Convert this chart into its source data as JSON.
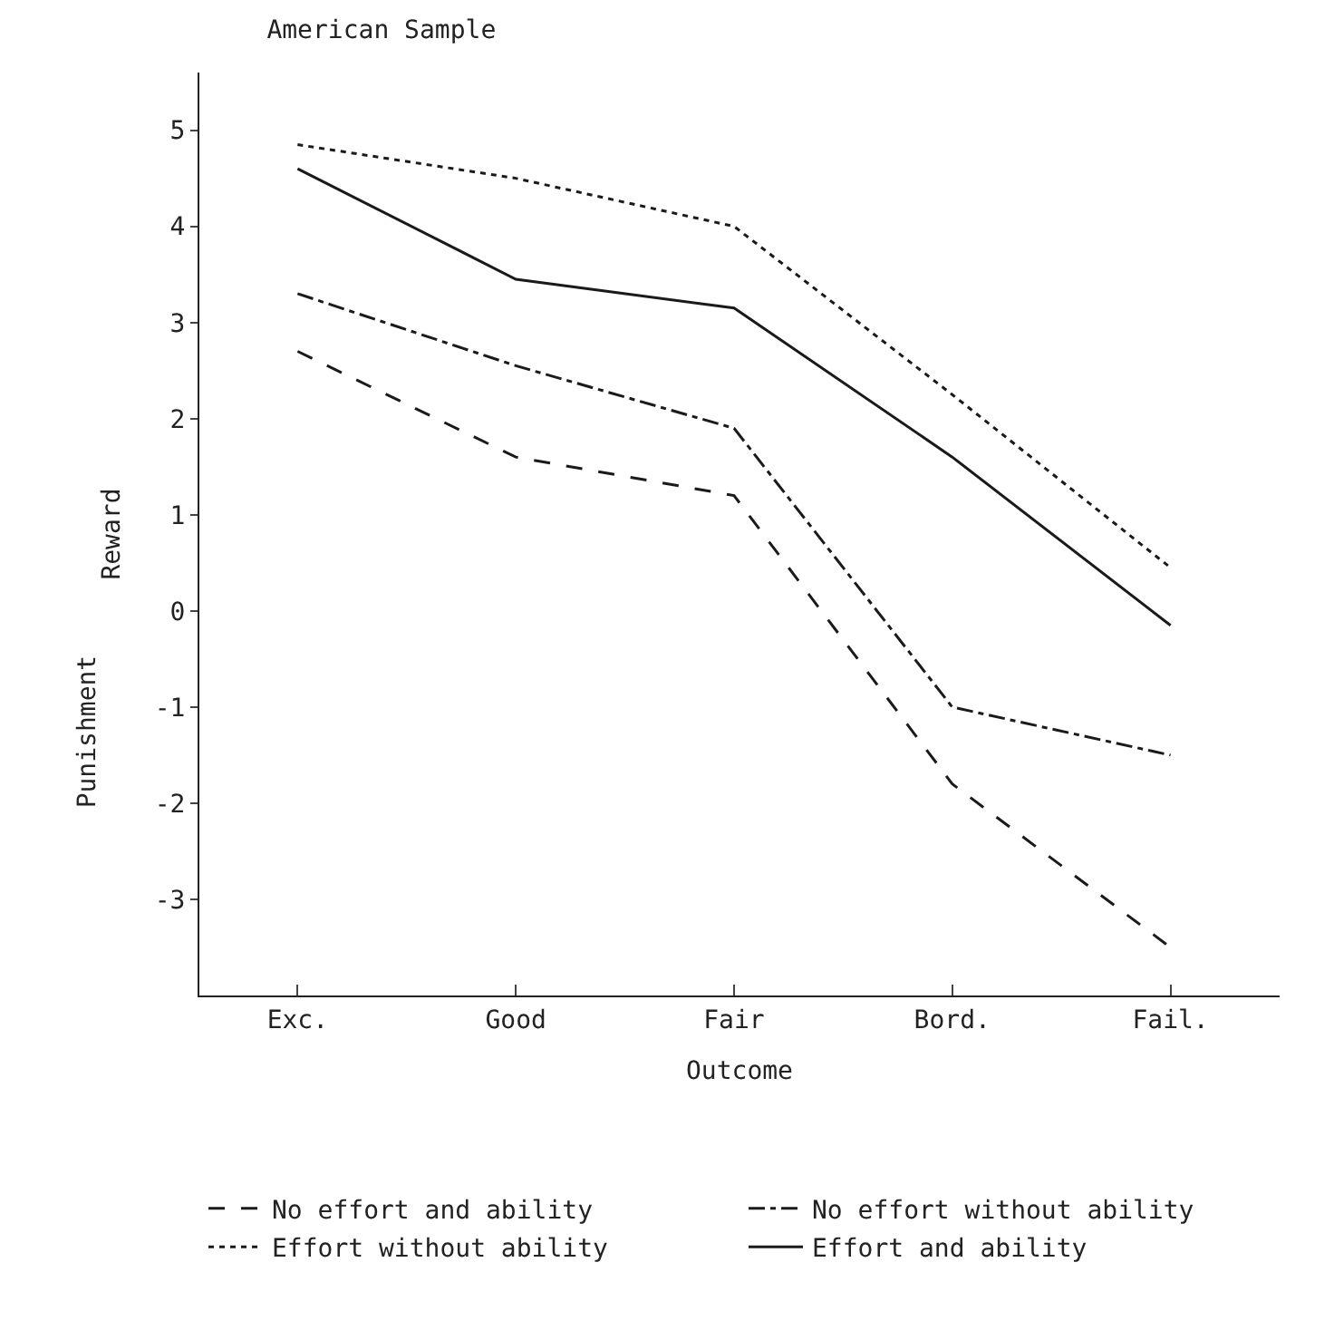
{
  "chart_data": {
    "type": "line",
    "title": "American Sample",
    "xlabel": "Outcome",
    "ylabel": "Reward",
    "annotations": [
      "Punishment"
    ],
    "categories": [
      "Exc.",
      "Good",
      "Fair",
      "Bord.",
      "Fail."
    ],
    "series": [
      {
        "name": "No effort and ability",
        "color": "#1a1a1a",
        "line_style": "dashed",
        "values": [
          2.7,
          1.6,
          1.2,
          -1.8,
          -3.5
        ]
      },
      {
        "name": "No effort without ability",
        "color": "#1a1a1a",
        "line_style": "dashdot",
        "values": [
          3.3,
          2.55,
          1.9,
          -1.0,
          -1.5
        ]
      },
      {
        "name": "Effort without ability",
        "color": "#1a1a1a",
        "line_style": "dotted",
        "values": [
          4.85,
          4.5,
          4.0,
          2.25,
          0.45
        ]
      },
      {
        "name": "Effort and ability",
        "color": "#1a1a1a",
        "line_style": "solid",
        "values": [
          4.6,
          3.45,
          3.15,
          1.6,
          -0.15
        ]
      }
    ],
    "ylim": [
      -4,
      5.6
    ],
    "yticks": [
      -3,
      -2,
      -1,
      0,
      1,
      2,
      3,
      4,
      5
    ],
    "legend": "bottom",
    "marker": "none"
  }
}
